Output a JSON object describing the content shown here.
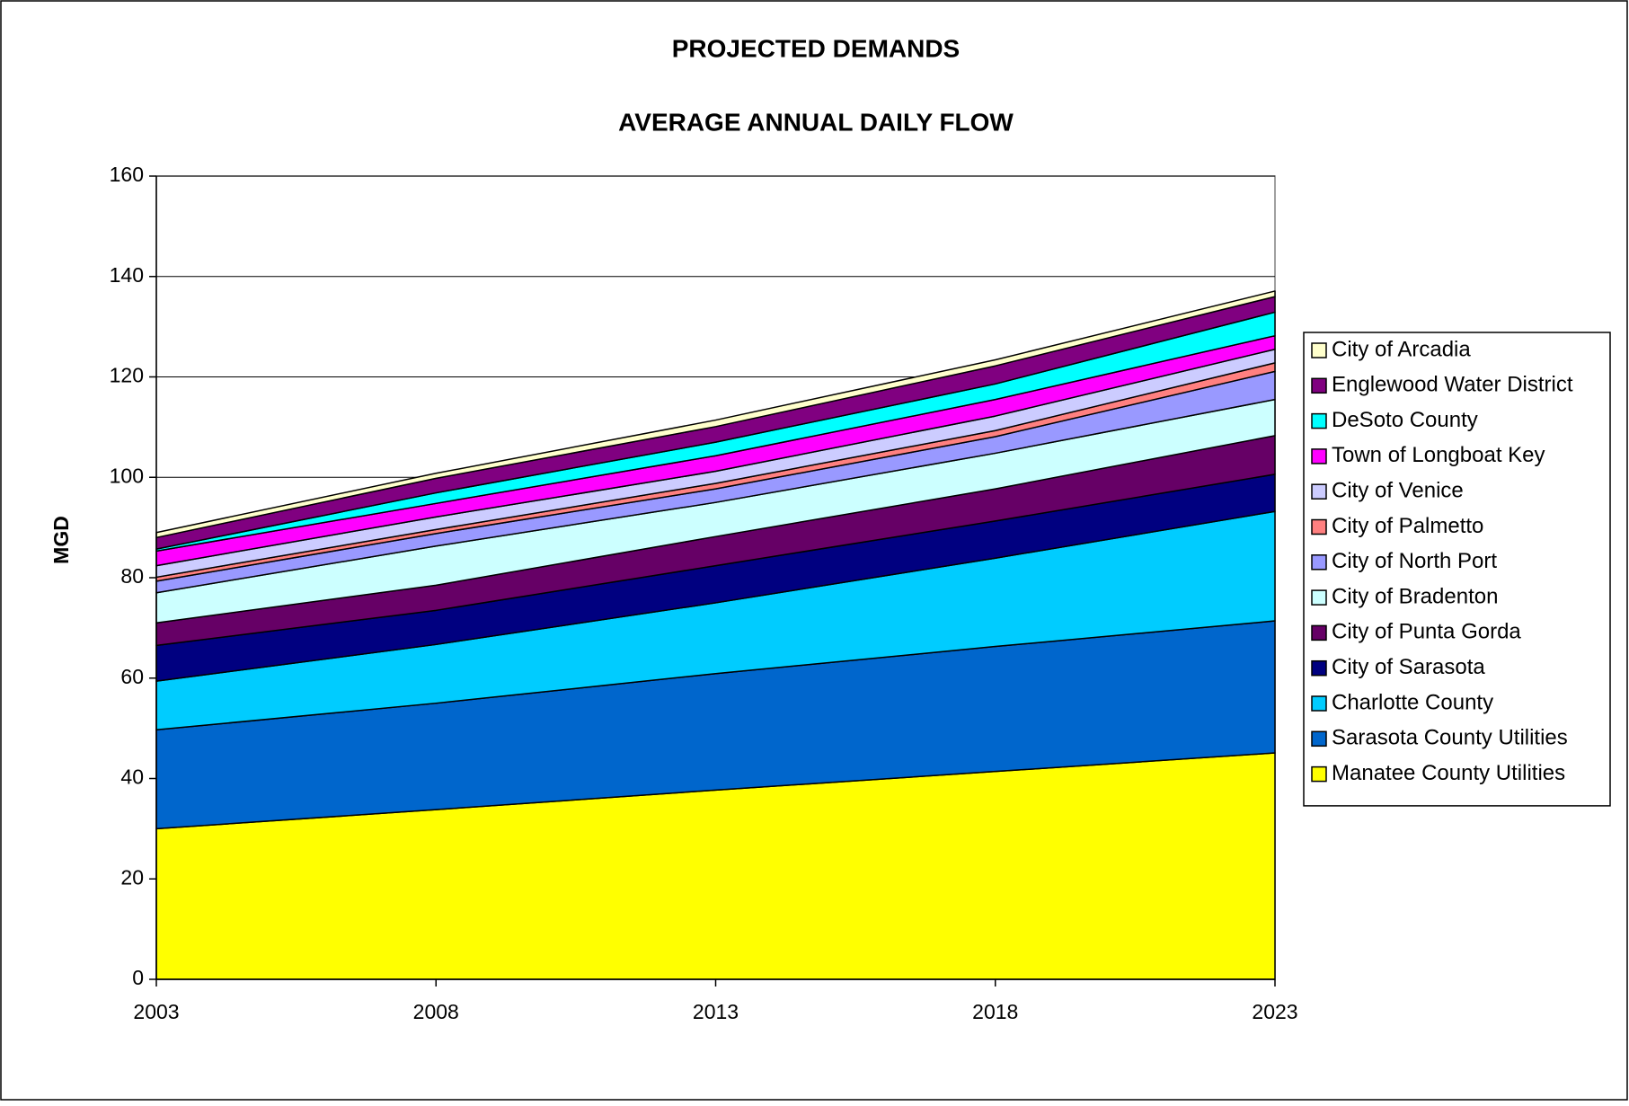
{
  "chart_data": {
    "type": "stacked_area",
    "title": "PROJECTED DEMANDS",
    "subtitle": "AVERAGE ANNUAL DAILY FLOW",
    "ylabel": "MGD",
    "categories": [
      "2003",
      "2008",
      "2013",
      "2018",
      "2023"
    ],
    "ylim": [
      0,
      160
    ],
    "yticks": [
      0,
      20,
      40,
      60,
      80,
      100,
      120,
      140,
      160
    ],
    "grid": true,
    "legend": "right",
    "series": [
      {
        "name": "Manatee County Utilities",
        "color": "#FFFF00",
        "values": [
          30.0,
          33.8,
          37.7,
          41.4,
          45.1
        ]
      },
      {
        "name": "Sarasota County Utilities",
        "color": "#0066CC",
        "values": [
          19.7,
          21.2,
          23.2,
          24.9,
          26.3
        ]
      },
      {
        "name": "Charlotte County",
        "color": "#00CCFF",
        "values": [
          9.7,
          11.7,
          14.1,
          17.6,
          21.8
        ]
      },
      {
        "name": "City of Sarasota",
        "color": "#000080",
        "values": [
          7.1,
          6.8,
          7.4,
          7.4,
          7.4
        ]
      },
      {
        "name": "City of Punta Gorda",
        "color": "#660066",
        "values": [
          4.5,
          5.0,
          5.8,
          6.4,
          7.7
        ]
      },
      {
        "name": "City of Bradenton",
        "color": "#CCFFFF",
        "values": [
          6.0,
          7.8,
          6.8,
          7.1,
          7.2
        ]
      },
      {
        "name": "City of North Port",
        "color": "#9999FF",
        "values": [
          2.3,
          2.5,
          2.7,
          3.3,
          5.6
        ]
      },
      {
        "name": "City of Palmetto",
        "color": "#FF8080",
        "values": [
          0.8,
          0.8,
          1.1,
          1.2,
          1.7
        ]
      },
      {
        "name": "City of Venice",
        "color": "#CCCCFF",
        "values": [
          2.3,
          2.5,
          2.4,
          2.9,
          2.7
        ]
      },
      {
        "name": "Town of Longboat Key",
        "color": "#FF00FF",
        "values": [
          2.9,
          2.7,
          3.1,
          3.3,
          2.7
        ]
      },
      {
        "name": "DeSoto County",
        "color": "#00FFFF",
        "values": [
          0.4,
          2.1,
          2.7,
          3.1,
          4.7
        ]
      },
      {
        "name": "Englewood Water District",
        "color": "#800080",
        "values": [
          2.3,
          2.9,
          3.1,
          3.6,
          3.1
        ]
      },
      {
        "name": "City of Arcadia",
        "color": "#FFFFCC",
        "values": [
          1.0,
          1.0,
          1.3,
          1.2,
          1.1
        ]
      }
    ]
  }
}
